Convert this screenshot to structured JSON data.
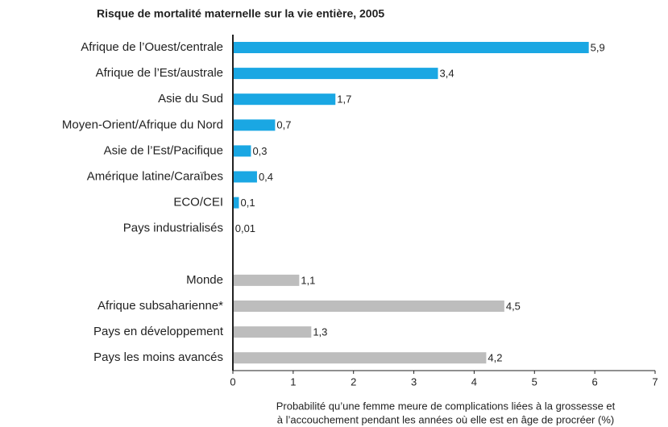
{
  "chart_data": {
    "type": "bar",
    "orientation": "horizontal",
    "title": "Risque de mortalité maternelle sur la vie entière, 2005",
    "xlabel": [
      "Probabilité qu’une femme meure de complications liées à la grossesse et",
      "à l’accouchement pendant les années où elle est en âge de procréer (%)"
    ],
    "categories": [
      "Afrique de l’Ouest/centrale",
      "Afrique de l’Est/australe",
      "Asie du Sud",
      "Moyen-Orient/Afrique du Nord",
      "Asie de l’Est/Pacifique",
      "Amérique latine/Caraïbes",
      "ECO/CEI",
      "Pays industrialisés",
      null,
      "Monde",
      "Afrique subsaharienne*",
      "Pays en développement",
      "Pays les moins avancés"
    ],
    "series": [
      {
        "color": "#1aa7e3",
        "values": [
          5.9,
          3.4,
          1.7,
          0.7,
          0.3,
          0.4,
          0.1,
          0.01,
          null,
          null,
          null,
          null,
          null
        ],
        "value_labels": [
          "5,9",
          "3,4",
          "1,7",
          "0,7",
          "0,3",
          "0,4",
          "0,1",
          "0,01",
          null,
          null,
          null,
          null,
          null
        ]
      },
      {
        "color": "#bdbdbd",
        "values": [
          null,
          null,
          null,
          null,
          null,
          null,
          null,
          null,
          null,
          1.1,
          4.5,
          1.3,
          4.2
        ],
        "value_labels": [
          null,
          null,
          null,
          null,
          null,
          null,
          null,
          null,
          null,
          "1,1",
          "4,5",
          "1,3",
          "4,2"
        ]
      }
    ],
    "xlim": [
      0,
      7
    ],
    "xticks": [
      0,
      1,
      2,
      3,
      4,
      5,
      6,
      7
    ]
  }
}
